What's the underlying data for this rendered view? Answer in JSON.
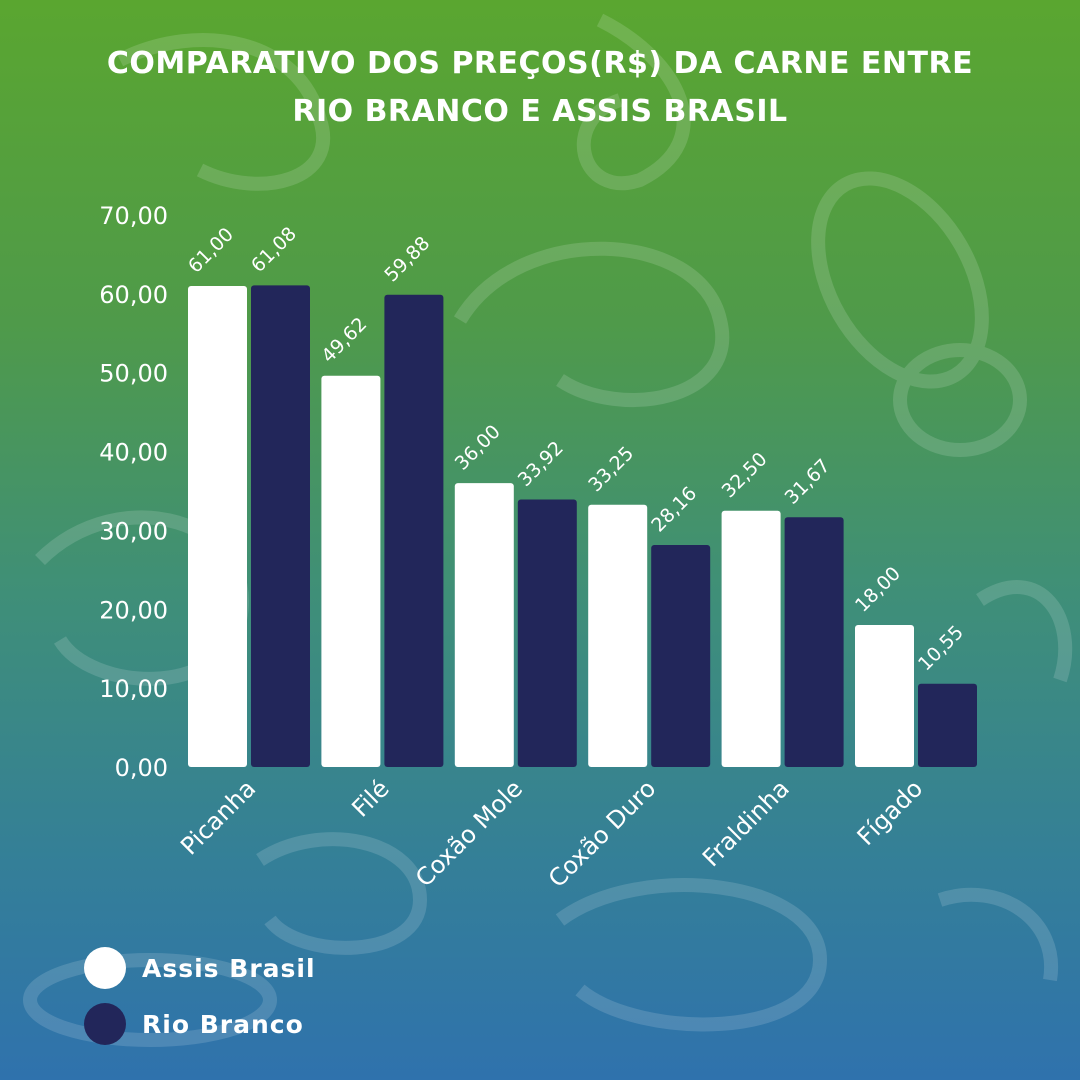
{
  "title_line1": "COMPARATIVO DOS PREÇOS(R$) DA CARNE ENTRE",
  "title_line2": "RIO BRANCO E ASSIS BRASIL",
  "colors": {
    "assis_brasil": "#ffffff",
    "rio_branco": "#22265a"
  },
  "chart_data": {
    "type": "bar",
    "title": "COMPARATIVO DOS PREÇOS(R$) DA CARNE ENTRE RIO BRANCO E ASSIS BRASIL",
    "xlabel": "",
    "ylabel": "",
    "ylim": [
      0,
      70
    ],
    "yticks": [
      "0,00",
      "10,00",
      "20,00",
      "30,00",
      "40,00",
      "50,00",
      "60,00",
      "70,00"
    ],
    "categories": [
      "Picanha",
      "Filé",
      "Coxão Mole",
      "Coxão Duro",
      "Fraldinha",
      "Fígado"
    ],
    "series": [
      {
        "name": "Assis Brasil",
        "values": [
          61.0,
          49.62,
          36.0,
          33.25,
          32.5,
          18.0
        ],
        "labels": [
          "61,00",
          "49,62",
          "36,00",
          "33,25",
          "32,50",
          "18,00"
        ]
      },
      {
        "name": "Rio Branco",
        "values": [
          61.08,
          59.88,
          33.92,
          28.16,
          31.67,
          10.55
        ],
        "labels": [
          "61,08",
          "59,88",
          "33,92",
          "28,16",
          "31,67",
          "10,55"
        ]
      }
    ],
    "grid": false,
    "legend": "bottom-left"
  },
  "legend": {
    "items": [
      {
        "label": "Assis Brasil"
      },
      {
        "label": "Rio Branco"
      }
    ]
  }
}
